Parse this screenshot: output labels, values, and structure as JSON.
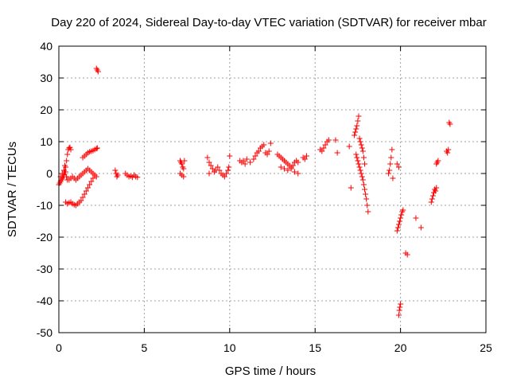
{
  "chart_data": {
    "type": "scatter",
    "title": "Day 220 of 2024, Sidereal Day-to-day VTEC variation (SDTVAR) for receiver mbar",
    "xlabel": "GPS time / hours",
    "ylabel": "SDTVAR / TECUs",
    "xlim": [
      0,
      25
    ],
    "ylim": [
      -50,
      40
    ],
    "xticks": [
      0,
      5,
      10,
      15,
      20,
      25
    ],
    "yticks": [
      -50,
      -40,
      -30,
      -20,
      -10,
      0,
      10,
      20,
      30,
      40
    ],
    "grid": true,
    "marker": "plus",
    "series": [
      {
        "name": "SDTVAR",
        "color": "#ff0000",
        "points": [
          [
            0.0,
            -3.5
          ],
          [
            0.05,
            -3.0
          ],
          [
            0.1,
            -2.5
          ],
          [
            0.15,
            -2.0
          ],
          [
            0.2,
            -1.5
          ],
          [
            0.25,
            -1.0
          ],
          [
            0.3,
            -0.5
          ],
          [
            0.35,
            0.5
          ],
          [
            0.4,
            2.0
          ],
          [
            0.45,
            4.0
          ],
          [
            0.5,
            6.0
          ],
          [
            0.55,
            7.5
          ],
          [
            0.6,
            8.0
          ],
          [
            0.65,
            8.2
          ],
          [
            0.7,
            7.5
          ],
          [
            0.1,
            -1.0
          ],
          [
            0.2,
            0.0
          ],
          [
            0.3,
            1.0
          ],
          [
            0.35,
            2.5
          ],
          [
            0.4,
            0.5
          ],
          [
            0.45,
            -1.0
          ],
          [
            0.5,
            -2.0
          ],
          [
            0.4,
            -9.0
          ],
          [
            0.5,
            -9.5
          ],
          [
            0.6,
            -9.2
          ],
          [
            0.7,
            -9.0
          ],
          [
            0.8,
            -9.5
          ],
          [
            0.9,
            -9.8
          ],
          [
            1.0,
            -10.0
          ],
          [
            1.1,
            -9.5
          ],
          [
            1.2,
            -9.0
          ],
          [
            1.3,
            -8.5
          ],
          [
            1.4,
            -7.5
          ],
          [
            1.5,
            -6.5
          ],
          [
            1.6,
            -5.5
          ],
          [
            1.7,
            -4.5
          ],
          [
            1.8,
            -3.5
          ],
          [
            1.9,
            -2.5
          ],
          [
            2.0,
            -1.5
          ],
          [
            2.1,
            -0.5
          ],
          [
            0.6,
            -2.0
          ],
          [
            0.7,
            -1.5
          ],
          [
            0.8,
            -1.0
          ],
          [
            0.9,
            -1.5
          ],
          [
            1.0,
            -2.0
          ],
          [
            1.1,
            -1.5
          ],
          [
            1.2,
            -1.0
          ],
          [
            1.3,
            -0.5
          ],
          [
            1.4,
            0.0
          ],
          [
            1.5,
            0.5
          ],
          [
            1.6,
            1.0
          ],
          [
            1.7,
            1.5
          ],
          [
            1.8,
            1.0
          ],
          [
            1.9,
            0.5
          ],
          [
            2.0,
            0.0
          ],
          [
            2.1,
            -0.5
          ],
          [
            2.2,
            -1.0
          ],
          [
            1.4,
            5.0
          ],
          [
            1.5,
            5.5
          ],
          [
            1.6,
            6.0
          ],
          [
            1.7,
            6.5
          ],
          [
            1.8,
            6.8
          ],
          [
            1.9,
            7.0
          ],
          [
            2.0,
            7.2
          ],
          [
            2.1,
            7.5
          ],
          [
            2.2,
            7.8
          ],
          [
            2.25,
            8.0
          ],
          [
            2.2,
            33.0
          ],
          [
            2.25,
            32.5
          ],
          [
            2.3,
            32.0
          ],
          [
            3.3,
            1.0
          ],
          [
            3.35,
            0.0
          ],
          [
            3.4,
            -1.0
          ],
          [
            3.45,
            -0.5
          ],
          [
            3.9,
            0.0
          ],
          [
            4.0,
            -0.5
          ],
          [
            4.1,
            -1.0
          ],
          [
            4.2,
            -0.8
          ],
          [
            4.3,
            -1.2
          ],
          [
            4.4,
            -0.5
          ],
          [
            4.5,
            -1.0
          ],
          [
            4.6,
            -1.2
          ],
          [
            7.1,
            4.0
          ],
          [
            7.15,
            3.5
          ],
          [
            7.2,
            3.0
          ],
          [
            7.25,
            2.0
          ],
          [
            7.3,
            1.5
          ],
          [
            7.1,
            0.0
          ],
          [
            7.2,
            -0.5
          ],
          [
            7.3,
            -1.0
          ],
          [
            7.35,
            4.0
          ],
          [
            8.7,
            5.0
          ],
          [
            8.8,
            3.5
          ],
          [
            8.9,
            2.5
          ],
          [
            9.0,
            1.5
          ],
          [
            9.1,
            0.5
          ],
          [
            9.2,
            1.0
          ],
          [
            9.3,
            2.0
          ],
          [
            9.4,
            1.0
          ],
          [
            9.5,
            0.0
          ],
          [
            9.6,
            -0.5
          ],
          [
            9.7,
            -1.0
          ],
          [
            9.8,
            0.0
          ],
          [
            9.9,
            1.0
          ],
          [
            9.95,
            2.0
          ],
          [
            8.8,
            0.0
          ],
          [
            10.0,
            5.5
          ],
          [
            10.6,
            4.0
          ],
          [
            10.7,
            3.5
          ],
          [
            10.8,
            4.0
          ],
          [
            10.9,
            3.0
          ],
          [
            11.0,
            4.5
          ],
          [
            11.2,
            3.5
          ],
          [
            11.4,
            4.5
          ],
          [
            11.5,
            5.5
          ],
          [
            11.6,
            6.5
          ],
          [
            11.7,
            7.0
          ],
          [
            11.8,
            8.0
          ],
          [
            11.9,
            8.5
          ],
          [
            12.0,
            9.0
          ],
          [
            12.1,
            6.5
          ],
          [
            12.2,
            6.0
          ],
          [
            12.3,
            7.0
          ],
          [
            12.4,
            9.5
          ],
          [
            12.8,
            6.0
          ],
          [
            12.9,
            5.5
          ],
          [
            13.0,
            5.0
          ],
          [
            13.1,
            4.5
          ],
          [
            13.2,
            4.0
          ],
          [
            13.3,
            3.5
          ],
          [
            13.4,
            3.0
          ],
          [
            13.5,
            2.5
          ],
          [
            13.6,
            2.0
          ],
          [
            13.7,
            2.5
          ],
          [
            13.8,
            3.5
          ],
          [
            13.9,
            4.0
          ],
          [
            14.0,
            3.5
          ],
          [
            13.0,
            2.0
          ],
          [
            13.2,
            1.5
          ],
          [
            13.4,
            1.0
          ],
          [
            13.6,
            1.5
          ],
          [
            13.8,
            0.5
          ],
          [
            14.0,
            0.0
          ],
          [
            14.3,
            5.0
          ],
          [
            14.4,
            4.5
          ],
          [
            14.5,
            5.5
          ],
          [
            15.3,
            7.5
          ],
          [
            15.4,
            7.0
          ],
          [
            15.5,
            8.0
          ],
          [
            15.6,
            9.0
          ],
          [
            15.7,
            10.0
          ],
          [
            15.8,
            10.5
          ],
          [
            16.2,
            10.5
          ],
          [
            16.3,
            6.5
          ],
          [
            17.0,
            8.5
          ],
          [
            17.1,
            -4.5
          ],
          [
            17.3,
            12.0
          ],
          [
            17.35,
            13.0
          ],
          [
            17.4,
            14.0
          ],
          [
            17.45,
            15.0
          ],
          [
            17.5,
            16.5
          ],
          [
            17.55,
            18.0
          ],
          [
            17.4,
            6.0
          ],
          [
            17.45,
            5.0
          ],
          [
            17.5,
            4.0
          ],
          [
            17.55,
            3.0
          ],
          [
            17.6,
            2.0
          ],
          [
            17.65,
            1.0
          ],
          [
            17.7,
            0.0
          ],
          [
            17.75,
            -1.0
          ],
          [
            17.8,
            -2.0
          ],
          [
            17.85,
            -3.5
          ],
          [
            17.9,
            -5.0
          ],
          [
            17.95,
            -6.5
          ],
          [
            18.0,
            -8.0
          ],
          [
            18.05,
            -10.0
          ],
          [
            18.1,
            -12.0
          ],
          [
            17.6,
            11.0
          ],
          [
            17.65,
            10.0
          ],
          [
            17.7,
            9.0
          ],
          [
            17.75,
            8.0
          ],
          [
            17.8,
            7.0
          ],
          [
            17.85,
            5.0
          ],
          [
            17.9,
            3.0
          ],
          [
            19.3,
            0.0
          ],
          [
            19.35,
            1.0
          ],
          [
            19.4,
            3.0
          ],
          [
            19.45,
            5.0
          ],
          [
            19.5,
            7.5
          ],
          [
            19.55,
            -1.5
          ],
          [
            19.8,
            3.0
          ],
          [
            19.9,
            2.0
          ],
          [
            19.8,
            -18.0
          ],
          [
            19.85,
            -17.0
          ],
          [
            19.9,
            -16.0
          ],
          [
            19.95,
            -15.0
          ],
          [
            20.0,
            -14.0
          ],
          [
            20.05,
            -13.0
          ],
          [
            20.1,
            -12.0
          ],
          [
            20.15,
            -11.5
          ],
          [
            19.9,
            -44.5
          ],
          [
            19.93,
            -43.0
          ],
          [
            19.96,
            -42.0
          ],
          [
            20.0,
            -41.0
          ],
          [
            20.3,
            -25.0
          ],
          [
            20.4,
            -25.5
          ],
          [
            20.9,
            -14.0
          ],
          [
            21.2,
            -17.0
          ],
          [
            21.8,
            -9.0
          ],
          [
            21.85,
            -8.0
          ],
          [
            21.9,
            -7.0
          ],
          [
            21.95,
            -6.0
          ],
          [
            22.0,
            -5.0
          ],
          [
            22.05,
            -5.5
          ],
          [
            22.1,
            -4.5
          ],
          [
            22.1,
            3.0
          ],
          [
            22.15,
            3.5
          ],
          [
            22.2,
            4.0
          ],
          [
            22.7,
            7.0
          ],
          [
            22.75,
            6.5
          ],
          [
            22.8,
            7.5
          ],
          [
            22.85,
            16.0
          ],
          [
            22.9,
            15.5
          ]
        ]
      }
    ]
  }
}
